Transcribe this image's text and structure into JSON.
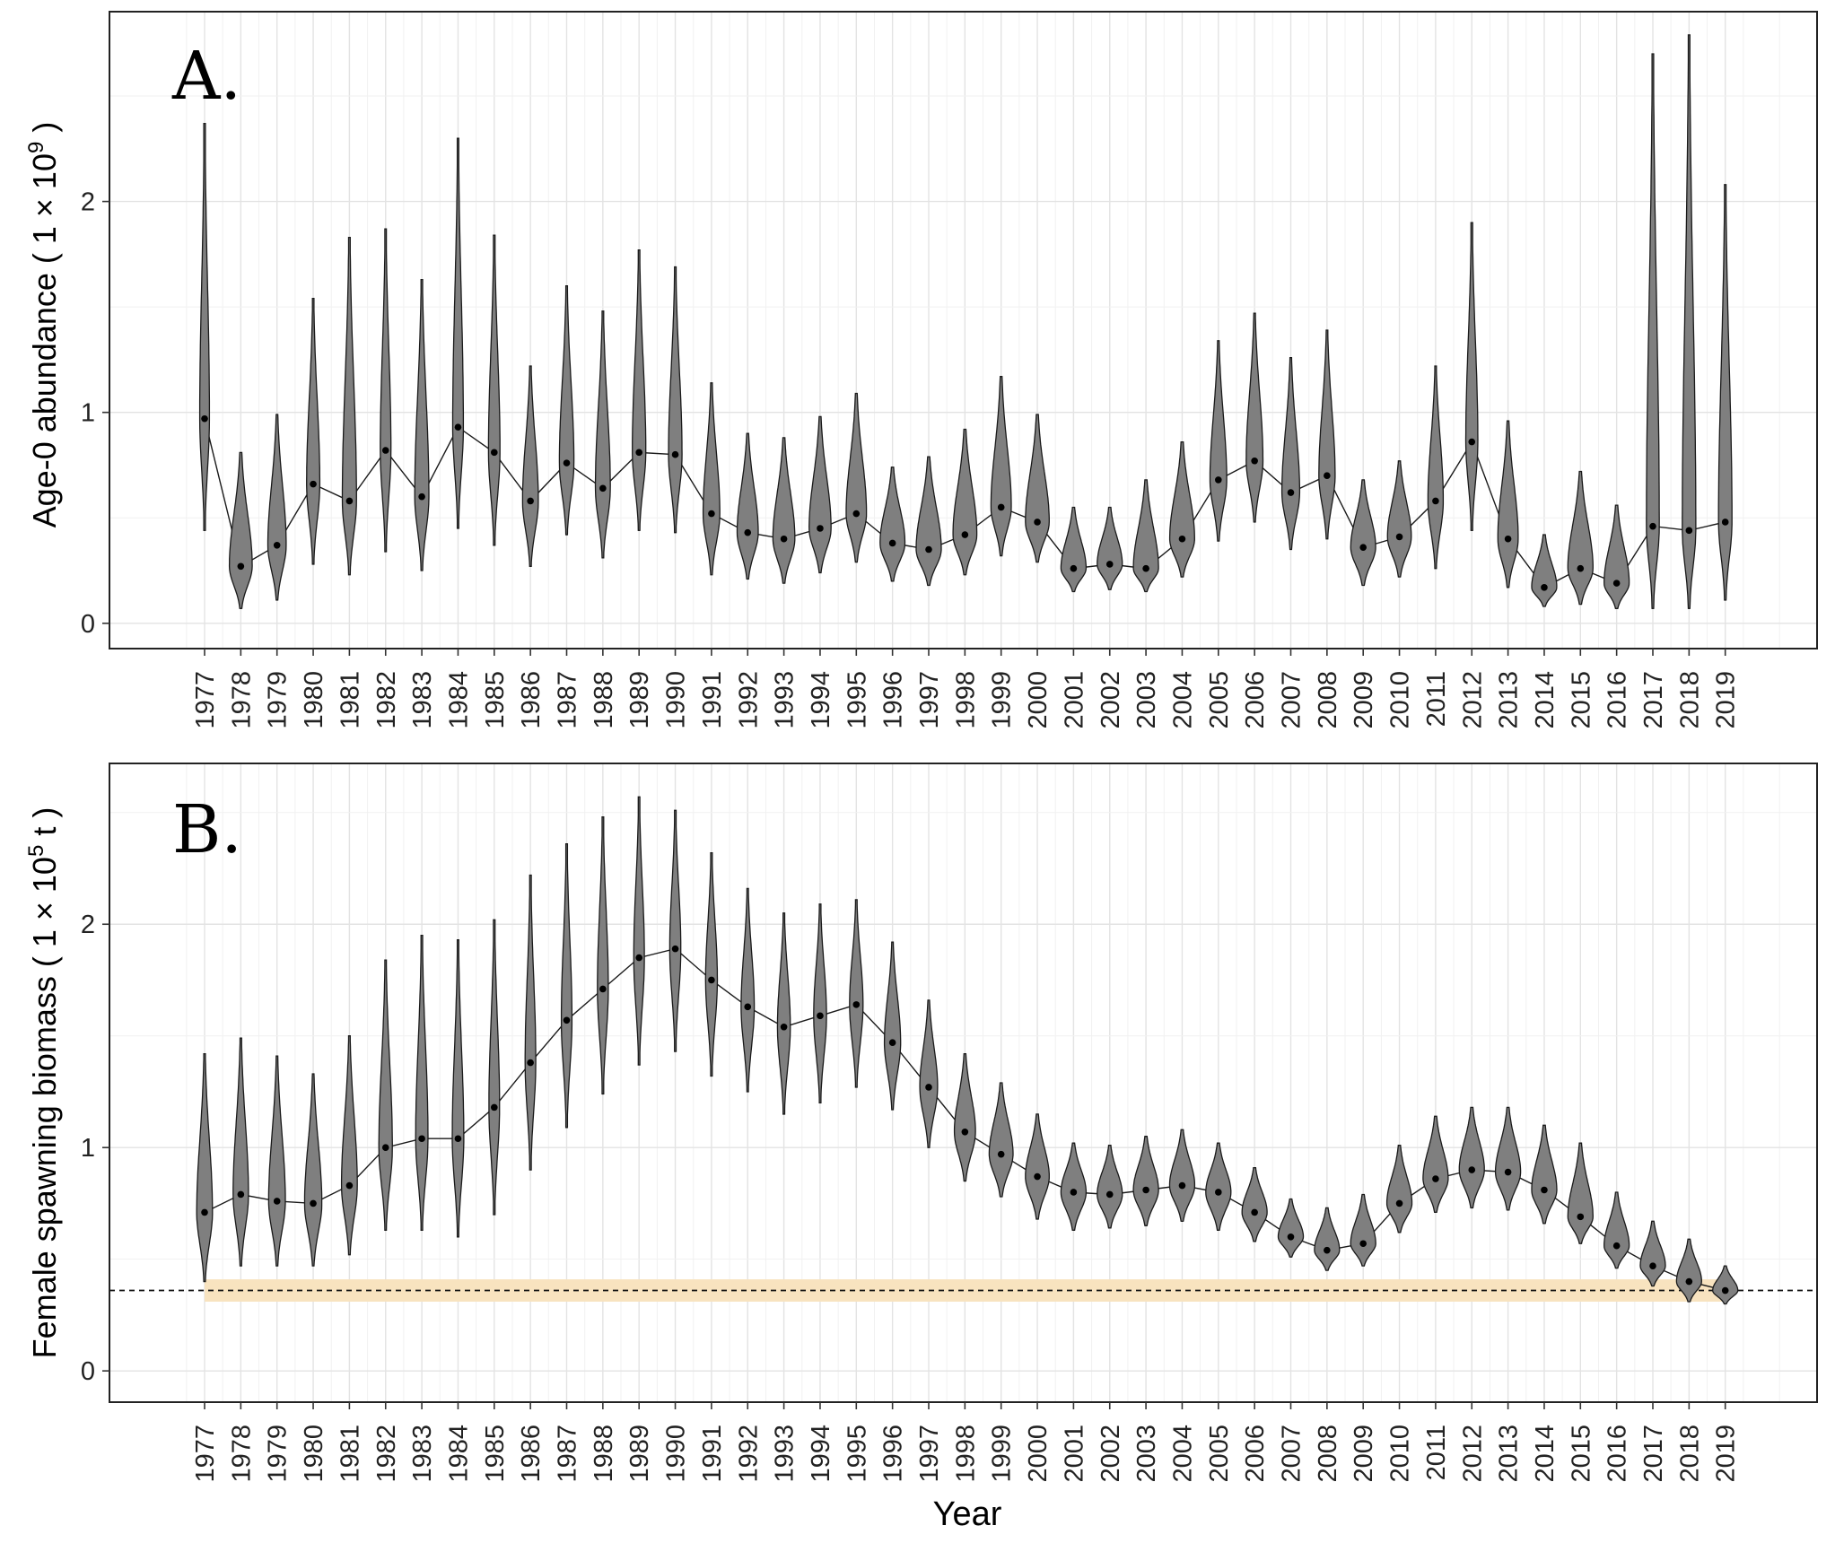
{
  "chart_data": [
    {
      "type": "violin",
      "panel_label": "A.",
      "ylabel": "Age-0 abundance ( 1 × 10",
      "ylabel_exp": "9",
      "ylabel_close": " )",
      "xlabel": "",
      "ylim": [
        -0.12,
        2.9
      ],
      "yticks": [
        0,
        1,
        2
      ],
      "grid": true,
      "x": [
        1977,
        1978,
        1979,
        1980,
        1981,
        1982,
        1983,
        1984,
        1985,
        1986,
        1987,
        1988,
        1989,
        1990,
        1991,
        1992,
        1993,
        1994,
        1995,
        1996,
        1997,
        1998,
        1999,
        2000,
        2001,
        2002,
        2003,
        2004,
        2005,
        2006,
        2007,
        2008,
        2009,
        2010,
        2011,
        2012,
        2013,
        2014,
        2015,
        2016,
        2017,
        2018,
        2019
      ],
      "median": [
        0.97,
        0.27,
        0.37,
        0.66,
        0.58,
        0.82,
        0.6,
        0.93,
        0.81,
        0.58,
        0.76,
        0.64,
        0.81,
        0.8,
        0.52,
        0.43,
        0.4,
        0.45,
        0.52,
        0.38,
        0.35,
        0.42,
        0.55,
        0.48,
        0.26,
        0.28,
        0.26,
        0.4,
        0.68,
        0.77,
        0.62,
        0.7,
        0.36,
        0.41,
        0.58,
        0.86,
        0.4,
        0.17,
        0.26,
        0.19,
        0.46,
        0.44,
        0.48
      ],
      "low": [
        0.44,
        0.07,
        0.11,
        0.28,
        0.23,
        0.34,
        0.25,
        0.45,
        0.37,
        0.27,
        0.42,
        0.31,
        0.44,
        0.43,
        0.23,
        0.21,
        0.19,
        0.24,
        0.29,
        0.2,
        0.18,
        0.23,
        0.32,
        0.29,
        0.15,
        0.16,
        0.15,
        0.22,
        0.39,
        0.48,
        0.35,
        0.4,
        0.18,
        0.22,
        0.26,
        0.44,
        0.17,
        0.08,
        0.09,
        0.07,
        0.07,
        0.07,
        0.11
      ],
      "high": [
        2.37,
        0.81,
        0.99,
        1.54,
        1.83,
        1.87,
        1.63,
        2.3,
        1.84,
        1.22,
        1.6,
        1.48,
        1.77,
        1.69,
        1.14,
        0.9,
        0.88,
        0.98,
        1.09,
        0.74,
        0.79,
        0.92,
        1.17,
        0.99,
        0.55,
        0.55,
        0.68,
        0.86,
        1.34,
        1.47,
        1.26,
        1.39,
        0.68,
        0.77,
        1.22,
        1.9,
        0.96,
        0.42,
        0.72,
        0.56,
        2.7,
        2.79,
        2.08
      ]
    },
    {
      "type": "violin",
      "panel_label": "B.",
      "ylabel": "Female spawning biomass ( 1 × 10",
      "ylabel_exp": "5",
      "ylabel_close": " t )",
      "xlabel": "Year",
      "ylim": [
        -0.14,
        2.72
      ],
      "yticks": [
        0,
        1,
        2
      ],
      "grid": true,
      "reference_line": 0.36,
      "reference_band": [
        0.31,
        0.41
      ],
      "x": [
        1977,
        1978,
        1979,
        1980,
        1981,
        1982,
        1983,
        1984,
        1985,
        1986,
        1987,
        1988,
        1989,
        1990,
        1991,
        1992,
        1993,
        1994,
        1995,
        1996,
        1997,
        1998,
        1999,
        2000,
        2001,
        2002,
        2003,
        2004,
        2005,
        2006,
        2007,
        2008,
        2009,
        2010,
        2011,
        2012,
        2013,
        2014,
        2015,
        2016,
        2017,
        2018,
        2019
      ],
      "median": [
        0.71,
        0.79,
        0.76,
        0.75,
        0.83,
        1.0,
        1.04,
        1.04,
        1.18,
        1.38,
        1.57,
        1.71,
        1.85,
        1.89,
        1.75,
        1.63,
        1.54,
        1.59,
        1.64,
        1.47,
        1.27,
        1.07,
        0.97,
        0.87,
        0.8,
        0.79,
        0.81,
        0.83,
        0.8,
        0.71,
        0.6,
        0.54,
        0.57,
        0.75,
        0.86,
        0.9,
        0.89,
        0.81,
        0.69,
        0.56,
        0.47,
        0.4,
        0.36
      ],
      "low": [
        0.4,
        0.47,
        0.47,
        0.47,
        0.52,
        0.63,
        0.63,
        0.6,
        0.7,
        0.9,
        1.09,
        1.24,
        1.37,
        1.43,
        1.32,
        1.25,
        1.15,
        1.2,
        1.27,
        1.17,
        1.0,
        0.85,
        0.78,
        0.68,
        0.63,
        0.64,
        0.65,
        0.67,
        0.63,
        0.58,
        0.51,
        0.45,
        0.47,
        0.62,
        0.71,
        0.73,
        0.72,
        0.66,
        0.57,
        0.46,
        0.38,
        0.31,
        0.3
      ],
      "high": [
        1.42,
        1.49,
        1.41,
        1.33,
        1.5,
        1.84,
        1.95,
        1.93,
        2.02,
        2.22,
        2.36,
        2.48,
        2.57,
        2.51,
        2.32,
        2.16,
        2.05,
        2.09,
        2.11,
        1.92,
        1.66,
        1.42,
        1.29,
        1.15,
        1.02,
        1.01,
        1.05,
        1.08,
        1.02,
        0.91,
        0.77,
        0.73,
        0.79,
        1.01,
        1.14,
        1.18,
        1.18,
        1.1,
        1.02,
        0.8,
        0.67,
        0.59,
        0.47
      ]
    }
  ]
}
